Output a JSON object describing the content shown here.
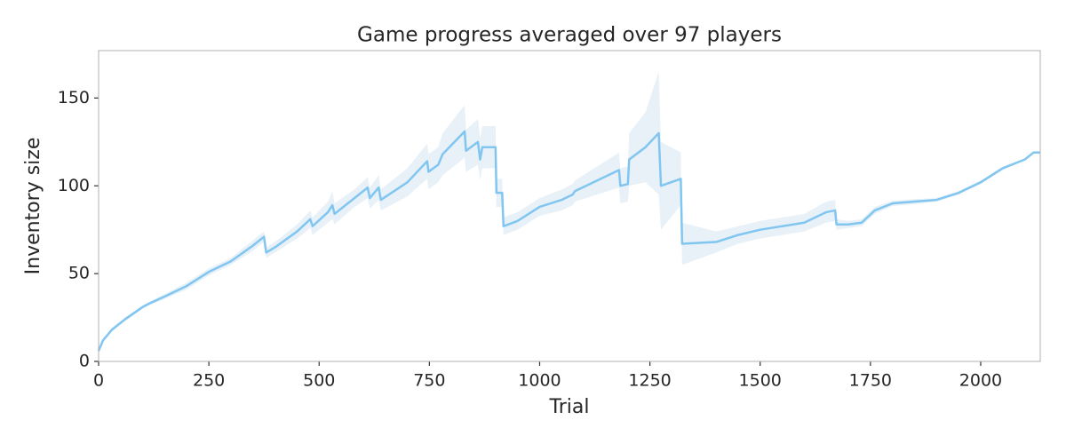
{
  "chart_data": {
    "type": "line",
    "title": "Game progress averaged over 97 players",
    "xlabel": "Trial",
    "ylabel": "Inventory size",
    "xlim": [
      0,
      2135
    ],
    "ylim": [
      0,
      177
    ],
    "xticks": [
      0,
      250,
      500,
      750,
      1000,
      1250,
      1500,
      1750,
      2000
    ],
    "yticks": [
      0,
      50,
      100,
      150
    ],
    "x": [
      0,
      10,
      30,
      60,
      100,
      115,
      150,
      200,
      250,
      300,
      350,
      375,
      380,
      400,
      450,
      480,
      485,
      520,
      530,
      535,
      580,
      610,
      615,
      635,
      640,
      700,
      745,
      748,
      770,
      780,
      830,
      833,
      860,
      865,
      870,
      900,
      902,
      915,
      918,
      950,
      1000,
      1050,
      1075,
      1080,
      1130,
      1180,
      1183,
      1200,
      1203,
      1240,
      1270,
      1275,
      1320,
      1323,
      1400,
      1450,
      1500,
      1600,
      1650,
      1670,
      1673,
      1700,
      1730,
      1760,
      1800,
      1850,
      1900,
      1950,
      2000,
      2050,
      2100,
      2120,
      2135
    ],
    "series": [
      {
        "color": "#80c6f0",
        "band_color": "#e8f1f8",
        "values": [
          6,
          12,
          18,
          24,
          31,
          33,
          37,
          43,
          51,
          57,
          66,
          71,
          62,
          65,
          74,
          81,
          77,
          85,
          89,
          84,
          93,
          99,
          93,
          99,
          92,
          102,
          114,
          108,
          112,
          118,
          131,
          120,
          125,
          115,
          122,
          122,
          96,
          96,
          77,
          80,
          88,
          92,
          95,
          97,
          103,
          109,
          100,
          101,
          115,
          122,
          130,
          100,
          104,
          67,
          68,
          72,
          75,
          79,
          85,
          86,
          78,
          78,
          79,
          86,
          90,
          91,
          92,
          96,
          102,
          110,
          115,
          119,
          119
        ],
        "lower": [
          5.5,
          11,
          17,
          23,
          30,
          32,
          35.5,
          41,
          49,
          55,
          63,
          68,
          59,
          62,
          70,
          76,
          72,
          79,
          81,
          78,
          88,
          93,
          87,
          92,
          86,
          94,
          104,
          98,
          102,
          106,
          116,
          108,
          112,
          103,
          110,
          110,
          88,
          88,
          72,
          75,
          83,
          86,
          89,
          91,
          95,
          99,
          90,
          91,
          100,
          102,
          95,
          75,
          89,
          55,
          62,
          67,
          70,
          74,
          79,
          80,
          75,
          76,
          77,
          84,
          88.5,
          89.5,
          91,
          95,
          101,
          109,
          114.5,
          118.5,
          118.5
        ],
        "upper": [
          6.5,
          13,
          19,
          25,
          32,
          34,
          38.5,
          45,
          53,
          59,
          69,
          74,
          65,
          68,
          78,
          86,
          82,
          91,
          97,
          90,
          98,
          105,
          99,
          106,
          98,
          110,
          124,
          118,
          122,
          130,
          146,
          132,
          138,
          127,
          134,
          134,
          104,
          104,
          82,
          85,
          93,
          98,
          101,
          103,
          111,
          119,
          110,
          111,
          130,
          142,
          165,
          125,
          119,
          79,
          74,
          77,
          80,
          84,
          91,
          92,
          81,
          80,
          81,
          88,
          91.5,
          92.5,
          93,
          97,
          103,
          111,
          115.5,
          119.5,
          119.5
        ]
      }
    ]
  }
}
